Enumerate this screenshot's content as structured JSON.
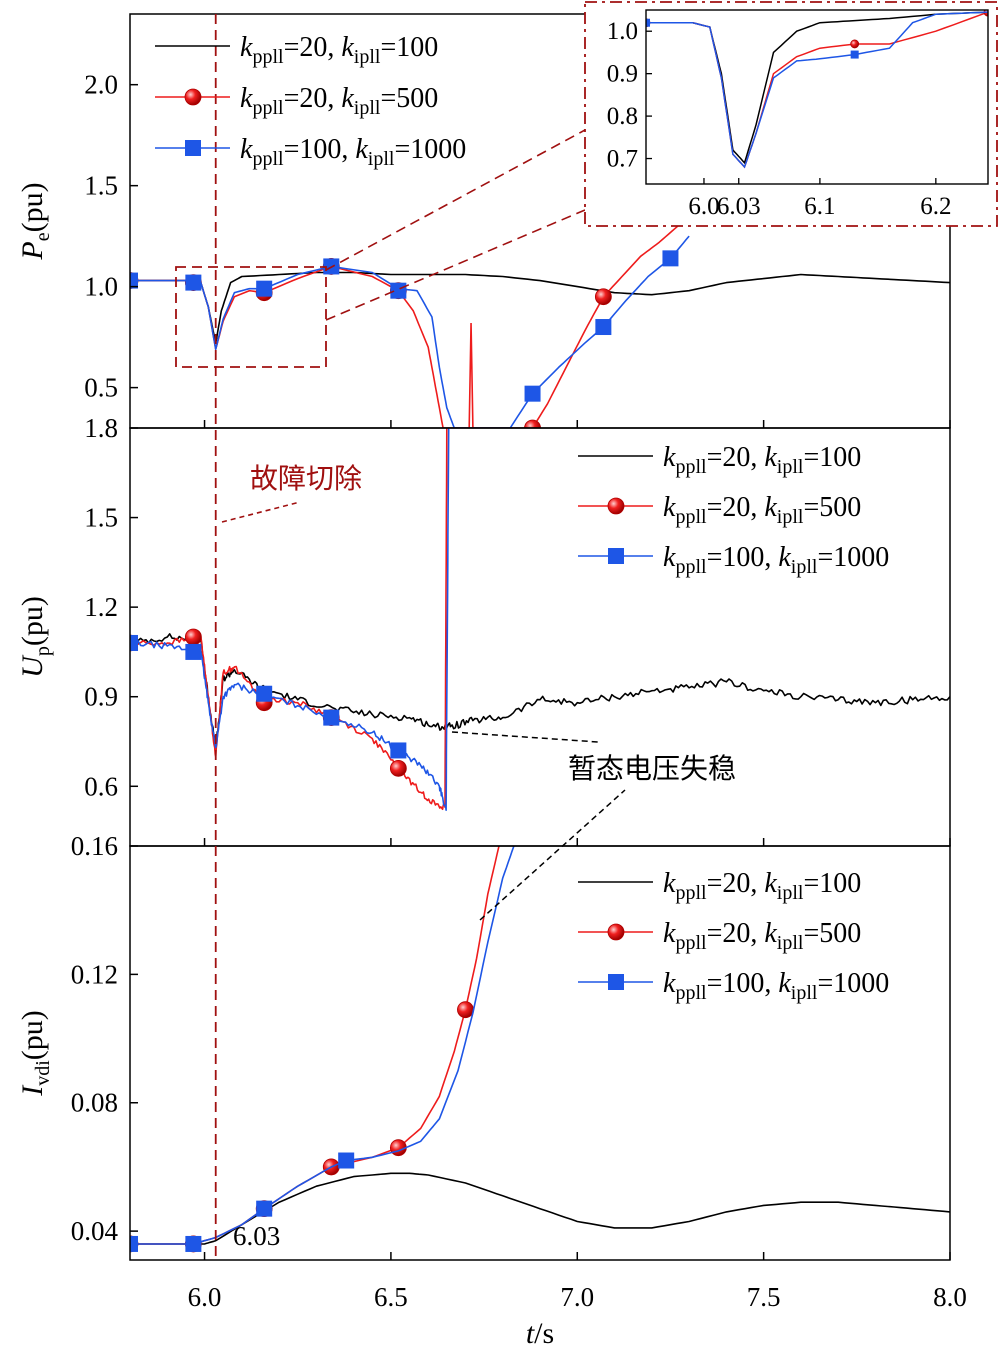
{
  "chart_data": [
    {
      "type": "line",
      "ylabel": "P_e(pu)",
      "ylabel_main": "P",
      "ylabel_sub": "e",
      "ylabel_unit": "(pu)",
      "xlim": [
        5.8,
        8.0
      ],
      "ylim": [
        0.3,
        2.35
      ],
      "yticks": [
        "0.5",
        "1.0",
        "1.5",
        "2.0"
      ],
      "ytick_values": [
        0.5,
        1.0,
        1.5,
        2.0
      ],
      "legend_position": "top-left",
      "series": [
        {
          "name": "k_ppll=20, k_ipll=100",
          "color": "#000000",
          "marker": "none",
          "x": [
            5.8,
            5.95,
            5.99,
            6.01,
            6.03,
            6.045,
            6.07,
            6.1,
            6.2,
            6.3,
            6.4,
            6.5,
            6.6,
            6.7,
            6.8,
            6.9,
            7.0,
            7.1,
            7.2,
            7.3,
            7.4,
            7.5,
            7.6,
            7.7,
            7.8,
            7.9,
            8.0
          ],
          "y": [
            1.03,
            1.03,
            1.02,
            0.9,
            0.72,
            0.88,
            1.02,
            1.05,
            1.06,
            1.07,
            1.07,
            1.06,
            1.06,
            1.06,
            1.05,
            1.03,
            1.0,
            0.97,
            0.96,
            0.98,
            1.02,
            1.04,
            1.06,
            1.05,
            1.04,
            1.03,
            1.02
          ]
        },
        {
          "name": "k_ppll=20, k_ipll=500",
          "color": "#ee1c1c",
          "marker": "circle",
          "x": [
            5.8,
            5.95,
            5.99,
            6.01,
            6.03,
            6.05,
            6.08,
            6.12,
            6.16,
            6.25,
            6.34,
            6.45,
            6.52,
            6.56,
            6.6,
            6.62,
            6.64,
            6.66,
            6.88,
            6.92,
            6.97,
            7.02,
            7.07,
            7.12,
            7.17,
            7.22,
            7.27
          ],
          "y": [
            1.03,
            1.03,
            1.02,
            0.9,
            0.69,
            0.83,
            0.95,
            0.98,
            0.97,
            1.04,
            1.1,
            1.05,
            0.98,
            0.88,
            0.7,
            0.5,
            0.3,
            0.3,
            0.3,
            0.42,
            0.6,
            0.78,
            0.95,
            1.05,
            1.15,
            1.22,
            1.3
          ],
          "marker_x": [
            5.8,
            5.97,
            6.16,
            6.34,
            6.52,
            6.88,
            7.07
          ],
          "marker_y": [
            1.03,
            1.02,
            0.97,
            1.1,
            0.98,
            0.3,
            0.95
          ]
        },
        {
          "name": "k_ppll=100, k_ipll=1000",
          "color": "#1e56e6",
          "marker": "square",
          "x": [
            5.8,
            5.95,
            5.99,
            6.01,
            6.03,
            6.05,
            6.08,
            6.12,
            6.16,
            6.25,
            6.34,
            6.45,
            6.52,
            6.57,
            6.61,
            6.63,
            6.65,
            6.67,
            6.82,
            6.88,
            6.95,
            7.02,
            7.07,
            7.13,
            7.19,
            7.25,
            7.3
          ],
          "y": [
            1.03,
            1.03,
            1.02,
            0.9,
            0.69,
            0.84,
            0.97,
            0.99,
            0.99,
            1.06,
            1.1,
            1.07,
            0.99,
            0.98,
            0.85,
            0.6,
            0.4,
            0.3,
            0.3,
            0.47,
            0.6,
            0.72,
            0.8,
            0.93,
            1.05,
            1.14,
            1.25
          ],
          "marker_x": [
            5.8,
            5.97,
            6.16,
            6.34,
            6.52,
            6.88,
            7.07,
            7.25
          ],
          "marker_y": [
            1.03,
            1.02,
            0.99,
            1.1,
            0.98,
            0.47,
            0.8,
            1.14
          ]
        }
      ],
      "inset": {
        "xlim": [
          5.95,
          6.245
        ],
        "ylim": [
          0.64,
          1.05
        ],
        "xticks": [
          "6.0",
          "6.03",
          "6.1",
          "6.2"
        ],
        "xtick_values": [
          6.0,
          6.03,
          6.1,
          6.2
        ],
        "yticks": [
          "0.7",
          "0.8",
          "0.9",
          "1.0"
        ],
        "ytick_values": [
          0.7,
          0.8,
          0.9,
          1.0
        ],
        "series": [
          {
            "color": "#000000",
            "x": [
              5.95,
              5.99,
              6.005,
              6.015,
              6.025,
              6.035,
              6.045,
              6.06,
              6.08,
              6.1,
              6.13,
              6.16,
              6.2,
              6.245
            ],
            "y": [
              1.02,
              1.02,
              1.01,
              0.9,
              0.72,
              0.69,
              0.78,
              0.95,
              1.0,
              1.02,
              1.025,
              1.03,
              1.04,
              1.045
            ]
          },
          {
            "color": "#ee1c1c",
            "x": [
              5.95,
              5.99,
              6.005,
              6.015,
              6.025,
              6.035,
              6.045,
              6.06,
              6.08,
              6.1,
              6.13,
              6.16,
              6.2,
              6.245
            ],
            "y": [
              1.02,
              1.02,
              1.01,
              0.89,
              0.71,
              0.68,
              0.76,
              0.9,
              0.94,
              0.96,
              0.97,
              0.97,
              1.0,
              1.045
            ],
            "marker_x": [
              5.95,
              6.13,
              6.245
            ],
            "marker_y": [
              1.02,
              0.97,
              1.045
            ]
          },
          {
            "color": "#1e56e6",
            "x": [
              5.95,
              5.99,
              6.005,
              6.015,
              6.025,
              6.035,
              6.045,
              6.06,
              6.08,
              6.1,
              6.13,
              6.16,
              6.18,
              6.2,
              6.245
            ],
            "y": [
              1.02,
              1.02,
              1.01,
              0.89,
              0.71,
              0.68,
              0.76,
              0.89,
              0.93,
              0.935,
              0.945,
              0.96,
              1.02,
              1.04,
              1.045
            ],
            "marker_x": [
              5.95,
              6.13
            ],
            "marker_y": [
              1.02,
              0.945
            ]
          }
        ]
      }
    },
    {
      "type": "line",
      "ylabel": "U_p(pu)",
      "ylabel_main": "U",
      "ylabel_sub": "p",
      "ylabel_unit": "(pu)",
      "xlim": [
        5.8,
        8.0
      ],
      "ylim": [
        0.4,
        1.8
      ],
      "yticks": [
        "0.6",
        "0.9",
        "1.2",
        "1.5",
        "1.8"
      ],
      "ytick_values": [
        0.6,
        0.9,
        1.2,
        1.5,
        1.8
      ],
      "legend_position": "top-right",
      "series": [
        {
          "name": "k_ppll=20, k_ipll=100",
          "color": "#000000",
          "marker": "none",
          "noise": 0.012,
          "x": [
            5.8,
            5.9,
            5.99,
            6.01,
            6.03,
            6.05,
            6.08,
            6.15,
            6.25,
            6.35,
            6.45,
            6.55,
            6.62,
            6.66,
            6.72,
            6.8,
            6.9,
            7.0,
            7.1,
            7.2,
            7.3,
            7.4,
            7.5,
            7.6,
            7.7,
            7.8,
            7.9,
            8.0
          ],
          "y": [
            1.08,
            1.1,
            1.09,
            0.9,
            0.72,
            0.96,
            0.99,
            0.93,
            0.89,
            0.86,
            0.84,
            0.83,
            0.8,
            0.8,
            0.82,
            0.83,
            0.89,
            0.88,
            0.9,
            0.92,
            0.93,
            0.95,
            0.92,
            0.9,
            0.89,
            0.88,
            0.89,
            0.9
          ]
        },
        {
          "name": "k_ppll=20, k_ipll=500",
          "color": "#ee1c1c",
          "marker": "circle",
          "noise": 0.01,
          "x": [
            5.8,
            5.9,
            5.99,
            6.01,
            6.03,
            6.05,
            6.08,
            6.15,
            6.25,
            6.35,
            6.45,
            6.52,
            6.58,
            6.63,
            6.645,
            6.65
          ],
          "y": [
            1.08,
            1.08,
            1.1,
            0.9,
            0.7,
            0.98,
            1.0,
            0.9,
            0.88,
            0.83,
            0.76,
            0.66,
            0.58,
            0.53,
            0.53,
            1.8
          ],
          "marker_x": [
            5.8,
            5.97,
            6.16,
            6.34,
            6.52
          ],
          "marker_y": [
            1.08,
            1.1,
            0.88,
            0.83,
            0.66
          ]
        },
        {
          "name": "k_ppll=100, k_ipll=1000",
          "color": "#1e56e6",
          "marker": "square",
          "noise": 0.01,
          "x": [
            5.8,
            5.9,
            5.99,
            6.01,
            6.03,
            6.05,
            6.08,
            6.15,
            6.25,
            6.35,
            6.45,
            6.52,
            6.58,
            6.63,
            6.648,
            6.655
          ],
          "y": [
            1.08,
            1.07,
            1.05,
            0.88,
            0.73,
            0.9,
            0.94,
            0.91,
            0.87,
            0.83,
            0.78,
            0.72,
            0.67,
            0.6,
            0.52,
            1.8
          ],
          "marker_x": [
            5.8,
            5.97,
            6.16,
            6.34,
            6.52
          ],
          "marker_y": [
            1.08,
            1.05,
            0.91,
            0.83,
            0.72
          ]
        }
      ]
    },
    {
      "type": "line",
      "ylabel": "I_vdi(pu)",
      "ylabel_main": "I",
      "ylabel_sub": "vdi",
      "ylabel_unit": "(pu)",
      "xlabel": "t/s",
      "xlabel_main": "t",
      "xlabel_unit": "/s",
      "xlim": [
        5.8,
        8.0
      ],
      "ylim": [
        0.031,
        0.16
      ],
      "xticks": [
        "6.0",
        "6.5",
        "7.0",
        "7.5",
        "8.0"
      ],
      "xtick_values": [
        6.0,
        6.5,
        7.0,
        7.5,
        8.0
      ],
      "yticks": [
        "0.04",
        "0.08",
        "0.12",
        "0.16"
      ],
      "ytick_values": [
        0.04,
        0.08,
        0.12,
        0.16
      ],
      "legend_position": "top-right",
      "series": [
        {
          "name": "k_ppll=20, k_ipll=100",
          "color": "#000000",
          "marker": "none",
          "x": [
            5.8,
            5.9,
            6.0,
            6.03,
            6.1,
            6.2,
            6.3,
            6.4,
            6.5,
            6.55,
            6.6,
            6.7,
            6.8,
            6.9,
            7.0,
            7.1,
            7.2,
            7.3,
            7.4,
            7.5,
            7.6,
            7.7,
            7.8,
            7.9,
            8.0
          ],
          "y": [
            0.036,
            0.036,
            0.036,
            0.037,
            0.042,
            0.049,
            0.054,
            0.057,
            0.058,
            0.058,
            0.0575,
            0.055,
            0.051,
            0.047,
            0.043,
            0.041,
            0.041,
            0.043,
            0.046,
            0.048,
            0.049,
            0.049,
            0.048,
            0.047,
            0.046
          ]
        },
        {
          "name": "k_ppll=20, k_ipll=500",
          "color": "#ee1c1c",
          "marker": "circle",
          "x": [
            5.8,
            5.9,
            5.97,
            6.03,
            6.1,
            6.16,
            6.25,
            6.34,
            6.45,
            6.52,
            6.58,
            6.63,
            6.67,
            6.7,
            6.73,
            6.76,
            6.79
          ],
          "y": [
            0.036,
            0.036,
            0.036,
            0.038,
            0.042,
            0.047,
            0.054,
            0.06,
            0.063,
            0.066,
            0.072,
            0.082,
            0.096,
            0.109,
            0.125,
            0.145,
            0.16
          ],
          "marker_x": [
            5.8,
            5.97,
            6.16,
            6.34,
            6.52,
            6.7
          ],
          "marker_y": [
            0.036,
            0.036,
            0.047,
            0.06,
            0.066,
            0.109
          ]
        },
        {
          "name": "k_ppll=100, k_ipll=1000",
          "color": "#1e56e6",
          "marker": "square",
          "x": [
            5.8,
            5.9,
            5.97,
            6.03,
            6.1,
            6.16,
            6.25,
            6.34,
            6.38,
            6.45,
            6.52,
            6.58,
            6.63,
            6.68,
            6.72,
            6.76,
            6.8,
            6.83
          ],
          "y": [
            0.036,
            0.036,
            0.036,
            0.038,
            0.042,
            0.047,
            0.054,
            0.06,
            0.062,
            0.063,
            0.065,
            0.068,
            0.075,
            0.09,
            0.108,
            0.13,
            0.15,
            0.16
          ],
          "marker_x": [
            5.8,
            5.97,
            6.16,
            6.38
          ],
          "marker_y": [
            0.036,
            0.036,
            0.047,
            0.062
          ]
        }
      ]
    }
  ],
  "legend_labels": [
    {
      "k1": "k",
      "s1": "ppll",
      "v1": "=20, ",
      "k2": "k",
      "s2": "ipll",
      "v2": "=100"
    },
    {
      "k1": "k",
      "s1": "ppll",
      "v1": "=20, ",
      "k2": "k",
      "s2": "ipll",
      "v2": "=500"
    },
    {
      "k1": "k",
      "s1": "ppll",
      "v1": "=100, ",
      "k2": "k",
      "s2": "ipll",
      "v2": "=1000"
    }
  ],
  "annotations": {
    "fault_clear": "故障切除",
    "voltage_instability": "暂态电压失稳",
    "fault_time": "6.03",
    "fault_time_value": 6.03
  },
  "colors": {
    "black": "#000000",
    "red": "#ee1c1c",
    "blue": "#1e56e6",
    "annotation_red": "#a01010"
  }
}
